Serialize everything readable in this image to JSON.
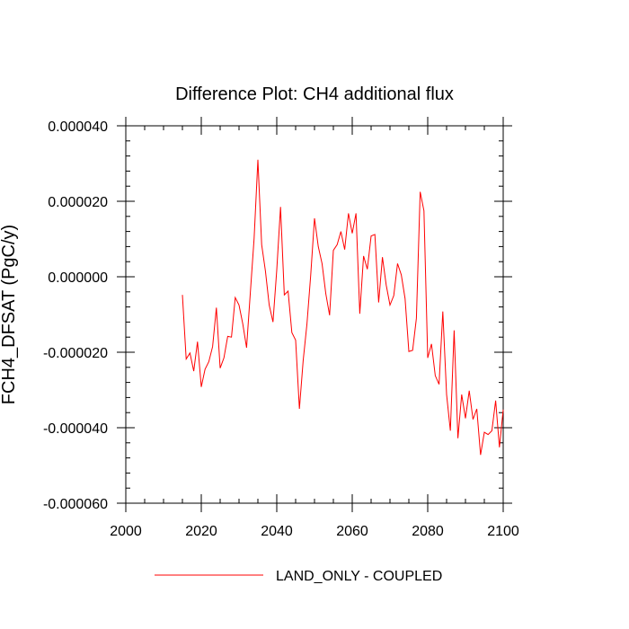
{
  "chart_data": {
    "type": "line",
    "title": "Difference Plot: CH4 additional flux",
    "xlabel": "",
    "ylabel": "FCH4_DFSAT  (PgC/y)",
    "xlim": [
      2000,
      2100
    ],
    "ylim": [
      -6e-05,
      4e-05
    ],
    "xticks": [
      2000,
      2020,
      2040,
      2060,
      2080,
      2100
    ],
    "xtick_labels": [
      "2000",
      "2020",
      "2040",
      "2060",
      "2080",
      "2100"
    ],
    "yticks": [
      -6e-05,
      -4e-05,
      -2e-05,
      0.0,
      2e-05,
      4e-05
    ],
    "ytick_labels": [
      "-0.000060",
      "-0.000040",
      "-0.000020",
      "0.000000",
      "0.000020",
      "0.000040"
    ],
    "grid": false,
    "legend_position": "bottom",
    "series": [
      {
        "name": "LAND_ONLY - COUPLED",
        "color": "#ff0000",
        "x": [
          2015,
          2016,
          2017,
          2018,
          2019,
          2020,
          2021,
          2022,
          2023,
          2024,
          2025,
          2026,
          2027,
          2028,
          2029,
          2030,
          2031,
          2032,
          2033,
          2034,
          2035,
          2036,
          2037,
          2038,
          2039,
          2040,
          2041,
          2042,
          2043,
          2044,
          2045,
          2046,
          2047,
          2048,
          2049,
          2050,
          2051,
          2052,
          2053,
          2054,
          2055,
          2056,
          2057,
          2058,
          2059,
          2060,
          2061,
          2062,
          2063,
          2064,
          2065,
          2066,
          2067,
          2068,
          2069,
          2070,
          2071,
          2072,
          2073,
          2074,
          2075,
          2076,
          2077,
          2078,
          2079,
          2080,
          2081,
          2082,
          2083,
          2084,
          2085,
          2086,
          2087,
          2088,
          2089,
          2090,
          2091,
          2092,
          2093,
          2094,
          2095,
          2096,
          2097,
          2098,
          2099,
          2100
        ],
        "values": [
          -4.8e-06,
          -2.18e-05,
          -2.02e-05,
          -2.5e-05,
          -1.72e-05,
          -2.92e-05,
          -2.45e-05,
          -2.25e-05,
          -1.85e-05,
          -8.2e-06,
          -2.42e-05,
          -2.15e-05,
          -1.58e-05,
          -1.6e-05,
          -5.5e-06,
          -7.5e-06,
          -1.25e-05,
          -1.88e-05,
          -4.2e-06,
          1.02e-05,
          3.1e-05,
          8.5e-06,
          1.5e-06,
          -7.5e-06,
          -1.2e-05,
          1.8e-06,
          1.85e-05,
          -4.8e-06,
          -3.8e-06,
          -1.48e-05,
          -1.68e-05,
          -3.5e-05,
          -2.22e-05,
          -1.25e-05,
          5e-07,
          1.55e-05,
          8e-06,
          3.5e-06,
          -4.5e-06,
          -1.02e-05,
          7e-06,
          8.5e-06,
          1.2e-05,
          7.2e-06,
          1.68e-05,
          1.15e-05,
          1.68e-05,
          -9.8e-06,
          5.5e-06,
          2e-06,
          1.08e-05,
          1.12e-05,
          -6.8e-06,
          5.2e-06,
          -2.2e-06,
          -7.5e-06,
          -5e-06,
          3.5e-06,
          5e-07,
          -5.8e-06,
          -1.98e-05,
          -1.95e-05,
          -1.1e-05,
          2.25e-05,
          1.75e-05,
          -2.15e-05,
          -1.78e-05,
          -2.62e-05,
          -2.85e-05,
          -9.2e-06,
          -3.12e-05,
          -4.08e-05,
          -1.42e-05,
          -4.28e-05,
          -3.12e-05,
          -3.75e-05,
          -3.02e-05,
          -3.78e-05,
          -3.5e-05,
          -4.72e-05,
          -4.12e-05,
          -4.18e-05,
          -4.08e-05,
          -3.28e-05,
          -4.52e-05,
          -3.52e-05
        ]
      }
    ]
  }
}
